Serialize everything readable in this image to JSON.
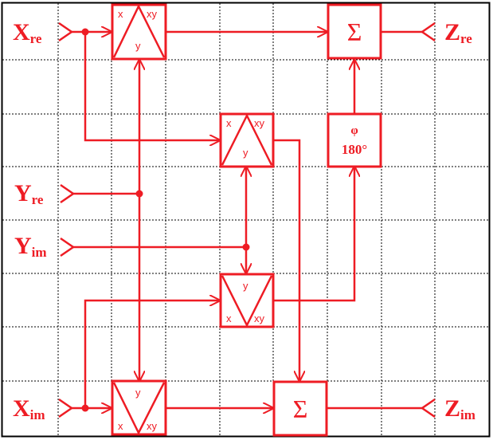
{
  "inputs": {
    "x_re": {
      "main": "X",
      "sub": "re"
    },
    "y_re": {
      "main": "Y",
      "sub": "re"
    },
    "y_im": {
      "main": "Y",
      "sub": "im"
    },
    "x_im": {
      "main": "X",
      "sub": "im"
    }
  },
  "outputs": {
    "z_re": {
      "main": "Z",
      "sub": "re"
    },
    "z_im": {
      "main": "Z",
      "sub": "im"
    }
  },
  "multiplier": {
    "x": "x",
    "y": "y",
    "xy": "xy"
  },
  "summer": {
    "symbol": "Σ"
  },
  "phase_shifter": {
    "symbol": "φ",
    "angle": "180°"
  },
  "colors": {
    "accent": "#ee1c24",
    "grid": "#000000",
    "background": "#ffffff"
  }
}
